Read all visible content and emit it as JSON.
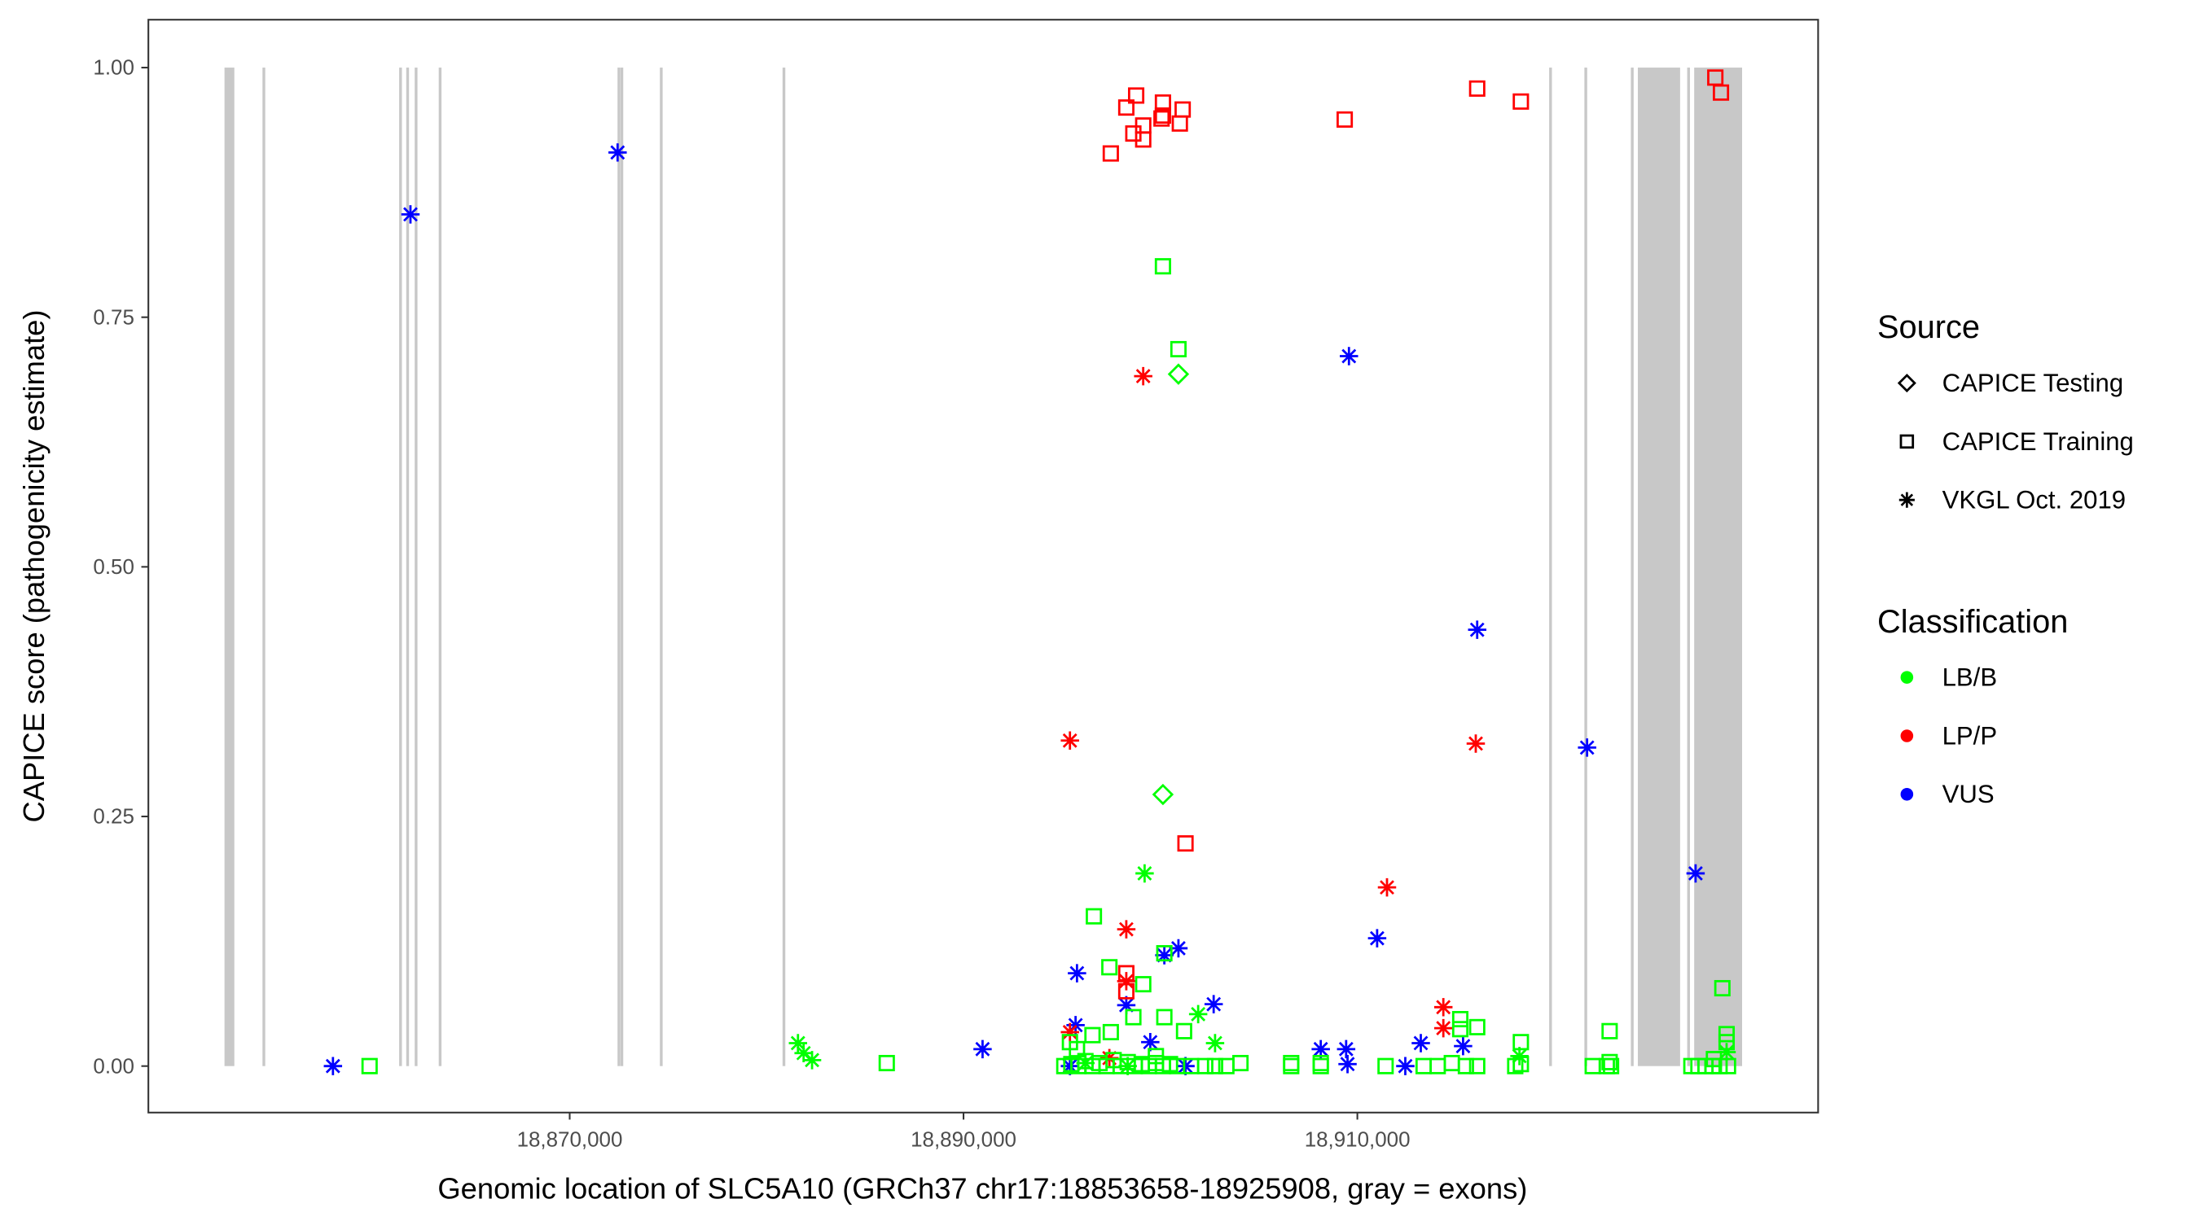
{
  "chart_data": {
    "type": "scatter",
    "xlabel": "Genomic location of SLC5A10 (GRCh37 chr17:18853658-18925908, gray = exons)",
    "ylabel": "CAPICE score (pathogenicity estimate)",
    "xlim": [
      18848600,
      18933400
    ],
    "ylim": [
      -0.047,
      1.048
    ],
    "xticks": [
      {
        "value": 18870000,
        "label": "18,870,000"
      },
      {
        "value": 18890000,
        "label": "18,890,000"
      },
      {
        "value": 18910000,
        "label": "18,910,000"
      }
    ],
    "yticks": [
      {
        "value": 0,
        "label": "0.00"
      },
      {
        "value": 0.25,
        "label": "0.25"
      },
      {
        "value": 0.5,
        "label": "0.50"
      },
      {
        "value": 0.75,
        "label": "0.75"
      },
      {
        "value": 1.0,
        "label": "1.00"
      }
    ],
    "grid": false,
    "legend_placement": "right",
    "legend": {
      "source_title": "Source",
      "sources": [
        {
          "key": "testing",
          "label": "CAPICE Testing",
          "shape": "diamond"
        },
        {
          "key": "training",
          "label": "CAPICE Training",
          "shape": "square"
        },
        {
          "key": "vkgl",
          "label": "VKGL Oct. 2019",
          "shape": "asterisk"
        }
      ],
      "class_title": "Classification",
      "classes": [
        {
          "key": "LB/B",
          "label": "LB/B",
          "color": "#00ff00"
        },
        {
          "key": "LP/P",
          "label": "LP/P",
          "color": "#ff0000"
        },
        {
          "key": "VUS",
          "label": "VUS",
          "color": "#0000ff"
        }
      ]
    },
    "exon_color": "#c8c8c8",
    "exons": [
      [
        18852470,
        18852970
      ],
      [
        18854400,
        18854540
      ],
      [
        18861340,
        18861480
      ],
      [
        18861700,
        18861840
      ],
      [
        18862130,
        18862270
      ],
      [
        18863350,
        18863490
      ],
      [
        18872430,
        18872570
      ],
      [
        18872580,
        18872720
      ],
      [
        18874580,
        18874720
      ],
      [
        18880810,
        18880950
      ],
      [
        18919740,
        18919880
      ],
      [
        18921530,
        18921670
      ],
      [
        18923890,
        18924030
      ],
      [
        18924243,
        18926390
      ],
      [
        18926750,
        18926890
      ],
      [
        18927105,
        18929538
      ]
    ],
    "points": [
      [
        18857978,
        0.0,
        "vkgl",
        "VUS"
      ],
      [
        18861914,
        0.853,
        "vkgl",
        "VUS"
      ],
      [
        18872433,
        0.915,
        "vkgl",
        "VUS"
      ],
      [
        18890967,
        0.017,
        "vkgl",
        "VUS"
      ],
      [
        18895404,
        0.0,
        "vkgl",
        "VUS"
      ],
      [
        18895690,
        0.041,
        "vkgl",
        "VUS"
      ],
      [
        18895762,
        0.093,
        "vkgl",
        "VUS"
      ],
      [
        18898266,
        0.061,
        "vkgl",
        "VUS"
      ],
      [
        18899483,
        0.024,
        "vkgl",
        "VUS"
      ],
      [
        18900198,
        0.111,
        "vkgl",
        "VUS"
      ],
      [
        18900914,
        0.118,
        "vkgl",
        "VUS"
      ],
      [
        18901272,
        0.0,
        "vkgl",
        "VUS"
      ],
      [
        18902703,
        0.062,
        "vkgl",
        "VUS"
      ],
      [
        18908141,
        0.017,
        "vkgl",
        "VUS"
      ],
      [
        18909430,
        0.017,
        "vkgl",
        "VUS"
      ],
      [
        18909501,
        0.002,
        "vkgl",
        "VUS"
      ],
      [
        18909573,
        0.711,
        "vkgl",
        "VUS"
      ],
      [
        18911004,
        0.128,
        "vkgl",
        "VUS"
      ],
      [
        18912435,
        0.0,
        "vkgl",
        "VUS"
      ],
      [
        18913222,
        0.023,
        "vkgl",
        "VUS"
      ],
      [
        18915369,
        0.02,
        "vkgl",
        "VUS"
      ],
      [
        18916085,
        0.437,
        "vkgl",
        "VUS"
      ],
      [
        18921666,
        0.319,
        "vkgl",
        "VUS"
      ],
      [
        18927176,
        0.193,
        "vkgl",
        "VUS"
      ],
      [
        18895404,
        0.326,
        "vkgl",
        "LP/P"
      ],
      [
        18899125,
        0.691,
        "vkgl",
        "LP/P"
      ],
      [
        18895404,
        0.034,
        "vkgl",
        "LP/P"
      ],
      [
        18897407,
        0.008,
        "vkgl",
        "LP/P"
      ],
      [
        18898266,
        0.137,
        "vkgl",
        "LP/P"
      ],
      [
        18898266,
        0.085,
        "vkgl",
        "LP/P"
      ],
      [
        18911505,
        0.179,
        "vkgl",
        "LP/P"
      ],
      [
        18914367,
        0.059,
        "vkgl",
        "LP/P"
      ],
      [
        18914367,
        0.038,
        "vkgl",
        "LP/P"
      ],
      [
        18916013,
        0.323,
        "vkgl",
        "LP/P"
      ],
      [
        18881593,
        0.023,
        "vkgl",
        "LB/B"
      ],
      [
        18881879,
        0.013,
        "vkgl",
        "LB/B"
      ],
      [
        18882308,
        0.006,
        "vkgl",
        "LB/B"
      ],
      [
        18899196,
        0.193,
        "vkgl",
        "LB/B"
      ],
      [
        18901916,
        0.052,
        "vkgl",
        "LB/B"
      ],
      [
        18902774,
        0.023,
        "vkgl",
        "LB/B"
      ],
      [
        18918231,
        0.01,
        "vkgl",
        "LB/B"
      ],
      [
        18928751,
        0.014,
        "vkgl",
        "LB/B"
      ],
      [
        18896191,
        0.003,
        "vkgl",
        "LB/B"
      ],
      [
        18898338,
        0.0,
        "vkgl",
        "LB/B"
      ],
      [
        18900914,
        0.693,
        "testing",
        "LB/B"
      ],
      [
        18900127,
        0.272,
        "testing",
        "LB/B"
      ],
      [
        18897479,
        0.914,
        "training",
        "LP/P"
      ],
      [
        18898266,
        0.96,
        "training",
        "LP/P"
      ],
      [
        18898767,
        0.972,
        "training",
        "LP/P"
      ],
      [
        18898624,
        0.934,
        "training",
        "LP/P"
      ],
      [
        18899125,
        0.942,
        "training",
        "LP/P"
      ],
      [
        18899125,
        0.928,
        "training",
        "LP/P"
      ],
      [
        18900127,
        0.965,
        "training",
        "LP/P"
      ],
      [
        18900127,
        0.952,
        "training",
        "LP/P"
      ],
      [
        18900055,
        0.949,
        "training",
        "LP/P"
      ],
      [
        18901129,
        0.958,
        "training",
        "LP/P"
      ],
      [
        18900985,
        0.944,
        "training",
        "LP/P"
      ],
      [
        18909358,
        0.948,
        "training",
        "LP/P"
      ],
      [
        18916085,
        0.979,
        "training",
        "LP/P"
      ],
      [
        18918303,
        0.966,
        "training",
        "LP/P"
      ],
      [
        18928178,
        0.99,
        "training",
        "LP/P"
      ],
      [
        18928465,
        0.975,
        "training",
        "LP/P"
      ],
      [
        18901272,
        0.223,
        "training",
        "LP/P"
      ],
      [
        18898266,
        0.093,
        "training",
        "LP/P"
      ],
      [
        18898266,
        0.075,
        "training",
        "LP/P"
      ],
      [
        18859838,
        0.0,
        "training",
        "LB/B"
      ],
      [
        18886101,
        0.003,
        "training",
        "LB/B"
      ],
      [
        18900127,
        0.801,
        "training",
        "LB/B"
      ],
      [
        18900914,
        0.718,
        "training",
        "LB/B"
      ],
      [
        18896620,
        0.15,
        "training",
        "LB/B"
      ],
      [
        18897407,
        0.099,
        "training",
        "LB/B"
      ],
      [
        18899125,
        0.082,
        "training",
        "LB/B"
      ],
      [
        18900198,
        0.113,
        "training",
        "LB/B"
      ],
      [
        18898624,
        0.049,
        "training",
        "LB/B"
      ],
      [
        18900198,
        0.049,
        "training",
        "LB/B"
      ],
      [
        18901200,
        0.035,
        "training",
        "LB/B"
      ],
      [
        18897479,
        0.034,
        "training",
        "LB/B"
      ],
      [
        18896549,
        0.031,
        "training",
        "LB/B"
      ],
      [
        18895404,
        0.024,
        "training",
        "LB/B"
      ],
      [
        18895762,
        0.017,
        "training",
        "LB/B"
      ],
      [
        18899769,
        0.01,
        "training",
        "LB/B"
      ],
      [
        18904063,
        0.003,
        "training",
        "LB/B"
      ],
      [
        18906639,
        0.003,
        "training",
        "LB/B"
      ],
      [
        18908141,
        0.0,
        "training",
        "LB/B"
      ],
      [
        18911433,
        0.0,
        "training",
        "LB/B"
      ],
      [
        18915226,
        0.047,
        "training",
        "LB/B"
      ],
      [
        18915226,
        0.037,
        "training",
        "LB/B"
      ],
      [
        18916085,
        0.039,
        "training",
        "LB/B"
      ],
      [
        18918303,
        0.024,
        "training",
        "LB/B"
      ],
      [
        18922811,
        0.035,
        "training",
        "LB/B"
      ],
      [
        18921953,
        0.0,
        "training",
        "LB/B"
      ],
      [
        18922811,
        0.004,
        "training",
        "LB/B"
      ],
      [
        18928536,
        0.078,
        "training",
        "LB/B"
      ],
      [
        18928751,
        0.032,
        "training",
        "LB/B"
      ],
      [
        18928751,
        0.024,
        "training",
        "LB/B"
      ],
      [
        18928107,
        0.007,
        "training",
        "LB/B"
      ],
      [
        18895118,
        0.0,
        "training",
        "LB/B"
      ],
      [
        18895475,
        0.002,
        "training",
        "LB/B"
      ],
      [
        18895833,
        0.0,
        "training",
        "LB/B"
      ],
      [
        18896191,
        0.005,
        "training",
        "LB/B"
      ],
      [
        18896549,
        0.0,
        "training",
        "LB/B"
      ],
      [
        18896907,
        0.003,
        "training",
        "LB/B"
      ],
      [
        18897264,
        0.0,
        "training",
        "LB/B"
      ],
      [
        18897622,
        0.006,
        "training",
        "LB/B"
      ],
      [
        18897980,
        0.0,
        "training",
        "LB/B"
      ],
      [
        18898338,
        0.004,
        "training",
        "LB/B"
      ],
      [
        18898696,
        0.0,
        "training",
        "LB/B"
      ],
      [
        18899053,
        0.002,
        "training",
        "LB/B"
      ],
      [
        18899411,
        0.0,
        "training",
        "LB/B"
      ],
      [
        18899769,
        0.003,
        "training",
        "LB/B"
      ],
      [
        18900127,
        0.0,
        "training",
        "LB/B"
      ],
      [
        18900485,
        0.002,
        "training",
        "LB/B"
      ],
      [
        18900842,
        0.0,
        "training",
        "LB/B"
      ],
      [
        18901558,
        0.0,
        "training",
        "LB/B"
      ],
      [
        18902274,
        0.0,
        "training",
        "LB/B"
      ],
      [
        18902774,
        0.0,
        "training",
        "LB/B"
      ],
      [
        18903347,
        0.0,
        "training",
        "LB/B"
      ],
      [
        18906639,
        0.0,
        "training",
        "LB/B"
      ],
      [
        18908141,
        0.003,
        "training",
        "LB/B"
      ],
      [
        18913365,
        0.0,
        "training",
        "LB/B"
      ],
      [
        18914081,
        0.0,
        "training",
        "LB/B"
      ],
      [
        18914797,
        0.003,
        "training",
        "LB/B"
      ],
      [
        18915512,
        0.0,
        "training",
        "LB/B"
      ],
      [
        18916085,
        0.0,
        "training",
        "LB/B"
      ],
      [
        18918017,
        0.0,
        "training",
        "LB/B"
      ],
      [
        18918303,
        0.002,
        "training",
        "LB/B"
      ],
      [
        18922668,
        0.0,
        "training",
        "LB/B"
      ],
      [
        18922883,
        0.0,
        "training",
        "LB/B"
      ],
      [
        18926962,
        0.0,
        "training",
        "LB/B"
      ],
      [
        18927320,
        0.0,
        "training",
        "LB/B"
      ],
      [
        18927677,
        0.0,
        "training",
        "LB/B"
      ],
      [
        18928035,
        0.0,
        "training",
        "LB/B"
      ],
      [
        18928393,
        0.0,
        "training",
        "LB/B"
      ],
      [
        18928822,
        0.0,
        "training",
        "LB/B"
      ]
    ]
  }
}
